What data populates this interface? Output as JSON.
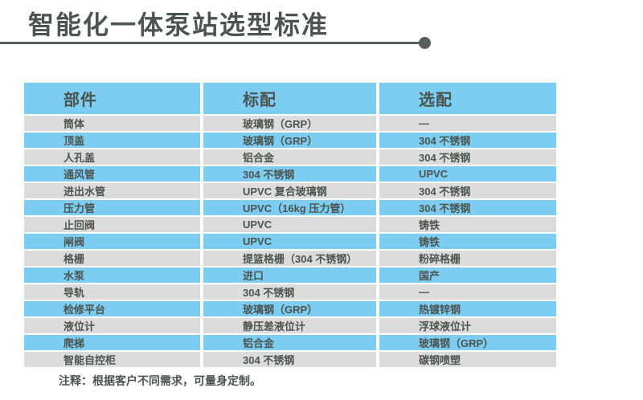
{
  "title": "智能化一体泵站选型标准",
  "footnote": "注释：根据客户不同需求，可量身定制。",
  "colors": {
    "accent_blue": "#7dccf1",
    "row_gray": "#dcdcdc",
    "text_dark": "#4b544f",
    "rule_line": "#565f5a"
  },
  "table": {
    "headers": [
      "部件",
      "标配",
      "选配"
    ],
    "rows": [
      [
        "筒体",
        "玻璃钢（GRP）",
        "—"
      ],
      [
        "顶盖",
        "玻璃钢（GRP）",
        "304 不锈钢"
      ],
      [
        "人孔盖",
        "铝合金",
        "304 不锈钢"
      ],
      [
        "通风管",
        "304 不锈钢",
        "UPVC"
      ],
      [
        "进出水管",
        "UPVC 复合玻璃钢",
        "304 不锈钢"
      ],
      [
        "压力管",
        "UPVC（16kg 压力管）",
        "304 不锈钢"
      ],
      [
        "止回阀",
        "UPVC",
        "铸铁"
      ],
      [
        "闸阀",
        "UPVC",
        "铸铁"
      ],
      [
        "格栅",
        "提篮格栅（304 不锈钢）",
        "粉碎格栅"
      ],
      [
        "水泵",
        "进口",
        "国产"
      ],
      [
        "导轨",
        "304 不锈钢",
        "—"
      ],
      [
        "检修平台",
        "玻璃钢（GRP）",
        "热镀锌钢"
      ],
      [
        "液位计",
        "静压差液位计",
        "浮球液位计"
      ],
      [
        "爬梯",
        "铝合金",
        "玻璃钢（GRP）"
      ],
      [
        "智能自控柜",
        "304 不锈钢",
        "碳钢喷塑"
      ]
    ]
  }
}
